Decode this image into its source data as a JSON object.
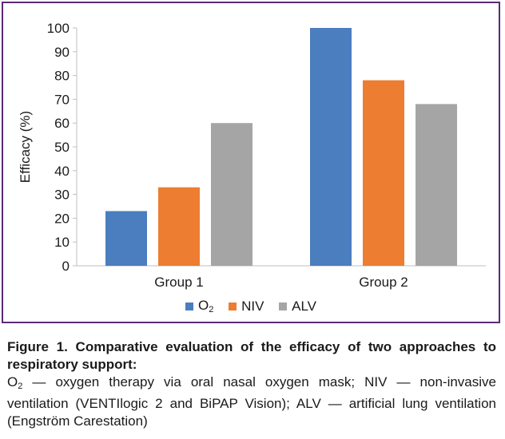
{
  "chart_data": {
    "type": "bar",
    "categories": [
      "Group 1",
      "Group 2"
    ],
    "series": [
      {
        "name": "O",
        "name_subscript": "2",
        "color": "#4a7ebf",
        "values": [
          23,
          100
        ]
      },
      {
        "name": "NIV",
        "color": "#ed7d31",
        "values": [
          33,
          78
        ]
      },
      {
        "name": "ALV",
        "color": "#a5a5a5",
        "values": [
          60,
          68
        ]
      }
    ],
    "ylabel": "Efficacy (%)",
    "ylim": [
      0,
      100
    ],
    "yticks": [
      0,
      10,
      20,
      30,
      40,
      50,
      60,
      70,
      80,
      90,
      100
    ],
    "grid": false,
    "legend_position": "bottom"
  },
  "caption": {
    "title": "Figure 1. Comparative evaluation of the efficacy of two approaches to respiratory support:",
    "o2_letter": "O",
    "o2_subscript": "2",
    "body": " — oxygen therapy via oral nasal oxygen mask; NIV — non-invasive ventilation (VENTIlogic 2 and BiPAP Vision); ALV — artificial lung ventilation (Engström Carestation)"
  }
}
